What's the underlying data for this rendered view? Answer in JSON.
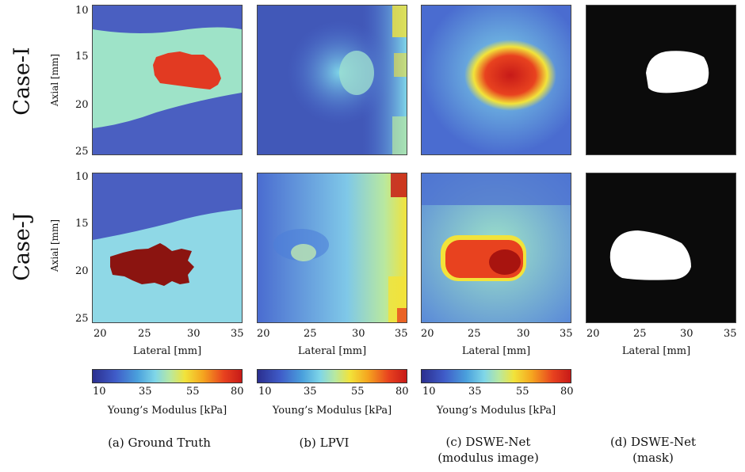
{
  "rows": [
    {
      "label": "Case-I",
      "ylabel": "Axial [mm]"
    },
    {
      "label": "Case-J",
      "ylabel": "Axial [mm]"
    }
  ],
  "axes": {
    "y_ticks": [
      "10",
      "15",
      "20",
      "25"
    ],
    "x_ticks": [
      "20",
      "25",
      "30",
      "35"
    ],
    "xlabel": "Lateral [mm]"
  },
  "colorbar": {
    "ticks": [
      "10",
      "35",
      "55",
      "80"
    ],
    "label": "Young’s  Modulus [kPa]",
    "range": [
      10,
      80
    ]
  },
  "columns": [
    {
      "caption_line1": "(a) Ground Truth",
      "caption_line2": ""
    },
    {
      "caption_line1": "(b) LPVI",
      "caption_line2": ""
    },
    {
      "caption_line1": "(c) DSWE-Net",
      "caption_line2": "(modulus image)"
    },
    {
      "caption_line1": "(d) DSWE-Net",
      "caption_line2": "(mask)"
    }
  ],
  "colors": {
    "background_blue": "#4a5fc1",
    "light_green": "#9ee3c8",
    "light_cyan": "#8fd8e6",
    "inclusion_red": "#e23a22",
    "inclusion_darkred": "#8b1410",
    "mask_black": "#0b0b0b",
    "mask_white": "#ffffff"
  }
}
